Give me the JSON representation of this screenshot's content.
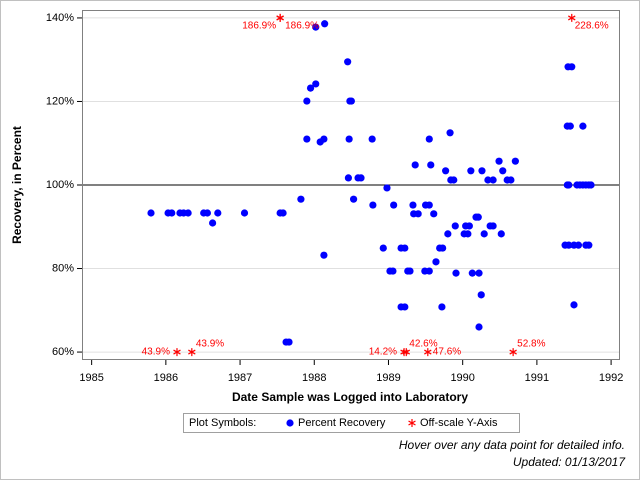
{
  "chart_data": {
    "type": "scatter",
    "x_label": "Date Sample was Logged into Laboratory",
    "y_label": "Recovery, in Percent",
    "xlim": [
      1984.87,
      1992.12
    ],
    "ylim": [
      58.1,
      141.9
    ],
    "xticks": [
      1985,
      1986,
      1987,
      1988,
      1989,
      1990,
      1991,
      1992
    ],
    "yticks": [
      {
        "value": 60,
        "label": "60%"
      },
      {
        "value": 80,
        "label": "80%"
      },
      {
        "value": 100,
        "label": "100%"
      },
      {
        "value": 120,
        "label": "120%"
      },
      {
        "value": 140,
        "label": "140%"
      }
    ],
    "grid": true,
    "reference_line": {
      "value": 100,
      "color": "#000000"
    },
    "legend_title": "Plot Symbols:",
    "series": [
      {
        "name": "Percent Recovery",
        "color": "#0000ff",
        "marker": "circle",
        "x": [
          1985.8,
          1986.03,
          1986.08,
          1986.19,
          1986.24,
          1986.3,
          1986.51,
          1986.56,
          1986.63,
          1986.7,
          1987.06,
          1987.54,
          1987.58,
          1987.62,
          1987.66,
          1987.82,
          1987.9,
          1987.9,
          1987.95,
          1988.02,
          1988.02,
          1988.08,
          1988.13,
          1988.14,
          1988.13,
          1988.45,
          1988.46,
          1988.47,
          1988.48,
          1988.5,
          1988.53,
          1988.59,
          1988.63,
          1988.78,
          1988.79,
          1988.93,
          1988.98,
          1989.02,
          1989.06,
          1989.07,
          1989.17,
          1989.22,
          1989.17,
          1989.22,
          1989.26,
          1989.29,
          1989.33,
          1989.34,
          1989.4,
          1989.36,
          1989.49,
          1989.55,
          1989.5,
          1989.55,
          1989.55,
          1989.57,
          1989.61,
          1989.64,
          1989.69,
          1989.73,
          1989.72,
          1989.77,
          1989.8,
          1989.83,
          1989.84,
          1989.88,
          1989.9,
          1989.91,
          1990.02,
          1990.07,
          1990.04,
          1990.09,
          1990.11,
          1990.13,
          1990.18,
          1990.21,
          1990.22,
          1990.22,
          1990.25,
          1990.26,
          1990.29,
          1990.34,
          1990.41,
          1990.37,
          1990.41,
          1990.49,
          1990.52,
          1990.54,
          1990.6,
          1990.65,
          1990.71,
          1991.38,
          1991.43,
          1991.5,
          1991.56,
          1991.41,
          1991.43,
          1991.41,
          1991.45,
          1991.42,
          1991.47,
          1991.5,
          1991.54,
          1991.58,
          1991.62,
          1991.66,
          1991.7,
          1991.73,
          1991.62,
          1991.66,
          1991.7
        ],
        "values": [
          93.3,
          93.3,
          93.3,
          93.3,
          93.3,
          93.3,
          93.3,
          93.3,
          90.9,
          93.3,
          93.3,
          93.3,
          93.3,
          62.4,
          62.4,
          96.6,
          111.0,
          120.1,
          123.2,
          124.2,
          137.8,
          110.3,
          111.0,
          138.6,
          83.2,
          129.5,
          101.7,
          111.0,
          120.1,
          120.1,
          96.6,
          101.7,
          101.7,
          111.0,
          95.2,
          84.9,
          99.3,
          79.4,
          79.4,
          95.2,
          84.9,
          84.9,
          70.8,
          70.8,
          79.4,
          79.4,
          95.2,
          93.1,
          93.1,
          104.8,
          79.4,
          79.4,
          95.2,
          95.2,
          111.0,
          104.8,
          93.1,
          81.6,
          84.9,
          84.9,
          70.8,
          103.4,
          88.3,
          112.5,
          101.2,
          101.2,
          90.2,
          78.9,
          88.3,
          88.3,
          90.2,
          90.2,
          103.4,
          78.9,
          92.3,
          92.3,
          78.9,
          66.0,
          73.7,
          103.4,
          88.3,
          101.2,
          101.2,
          90.2,
          90.2,
          105.7,
          88.3,
          103.4,
          101.2,
          101.2,
          105.7,
          85.6,
          85.6,
          85.6,
          85.6,
          100,
          100,
          114.1,
          114.1,
          128.3,
          128.3,
          71.3,
          100,
          100,
          100,
          100,
          100,
          100,
          114.1,
          85.6,
          85.6
        ]
      },
      {
        "name": "Off-scale Y-Axis",
        "color": "#ff0000",
        "marker": "asterisk",
        "x": [
          1987.54,
          1987.54,
          1991.47,
          1986.15,
          1986.35,
          1989.21,
          1989.24,
          1989.53,
          1990.68
        ],
        "values": [
          186.9,
          186.9,
          228.6,
          43.9,
          43.9,
          14.2,
          42.6,
          47.6,
          52.8
        ],
        "value_labels": [
          "186.9%",
          "186.9%",
          "228.6%",
          "43.9%",
          "43.9%",
          "14.2%",
          "42.6%",
          "47.6%",
          "52.8%"
        ]
      }
    ],
    "footnotes": [
      "Hover over any data point for detailed info.",
      "Updated: 01/13/2017"
    ]
  }
}
